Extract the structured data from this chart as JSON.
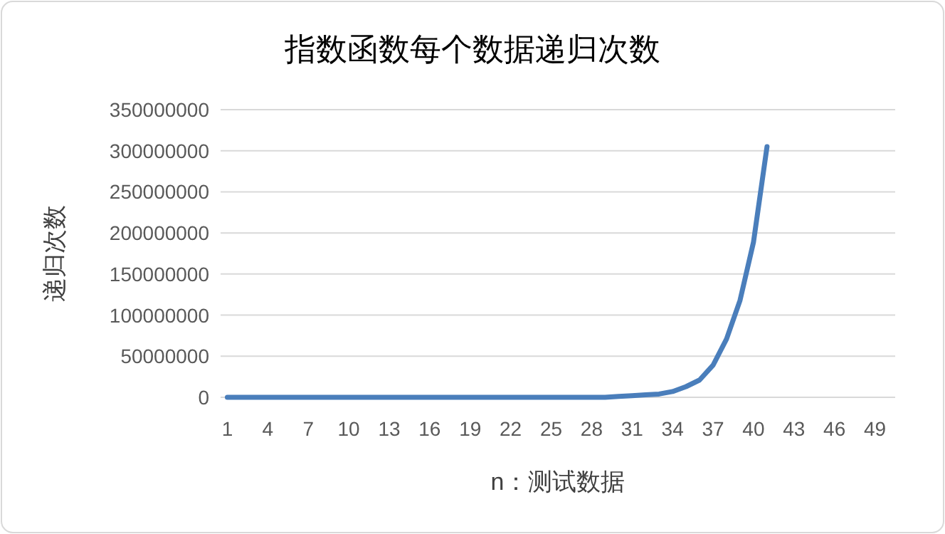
{
  "chart_data": {
    "type": "line",
    "title": "指数函数每个数据递归次数",
    "xlabel": "n：测试数据",
    "ylabel": "递归次数",
    "categories": [
      "1",
      null,
      null,
      "4",
      null,
      null,
      "7",
      null,
      null,
      "10",
      null,
      null,
      "13",
      null,
      null,
      "16",
      null,
      null,
      "19",
      null,
      null,
      "22",
      null,
      null,
      "25",
      null,
      null,
      "28",
      null,
      null,
      "31",
      null,
      null,
      "34",
      null,
      null,
      "37",
      null,
      null,
      "40",
      null,
      null,
      "43",
      null,
      null,
      "46",
      null,
      null,
      "49",
      null
    ],
    "series": [
      {
        "color": "#4a7ebb",
        "values": [
          0,
          0,
          0,
          0,
          0,
          0,
          0,
          0,
          0,
          0,
          0,
          0,
          0,
          0,
          0,
          0,
          0,
          0,
          0,
          0,
          0,
          0,
          0,
          0,
          0,
          0,
          0,
          0,
          0,
          1000000,
          2000000,
          3000000,
          4000000,
          7000000,
          13000000,
          21000000,
          39000000,
          71000000,
          118000000,
          189000000,
          305000000,
          null,
          null,
          null,
          null,
          null,
          null,
          null,
          null,
          null
        ]
      }
    ],
    "ylim": [
      0,
      350000000
    ],
    "yticks": [
      0,
      50000000,
      100000000,
      150000000,
      200000000,
      250000000,
      300000000,
      350000000
    ],
    "grid": "y",
    "marker": "none",
    "line_style": "solid"
  }
}
